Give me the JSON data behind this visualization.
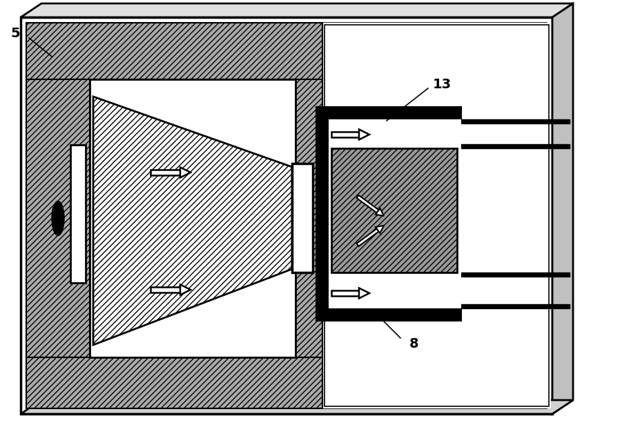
{
  "bg_color": "#ffffff",
  "fig_width": 8.98,
  "fig_height": 6.48,
  "label_5": "5",
  "label_13": "13",
  "label_8": "8"
}
